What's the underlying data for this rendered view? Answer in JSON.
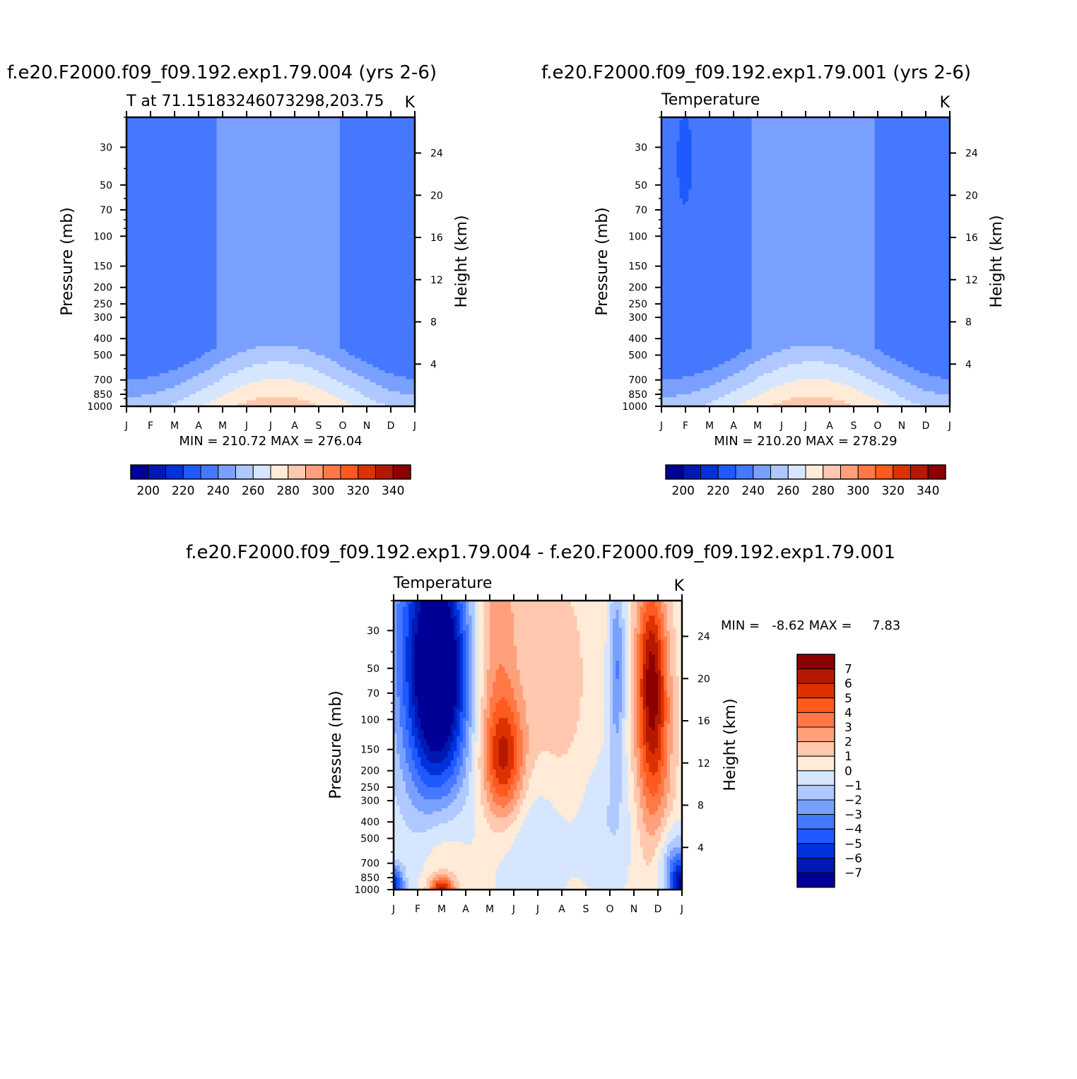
{
  "chart_data": [
    {
      "type": "heatmap",
      "title": "f.e20.F2000.f09_f09.192.exp1.79.004 (yrs 2-6)",
      "subtitle": "T at 71.15183246073298,203.75",
      "units": "K",
      "xlabel": "",
      "ylabel": "Pressure (mb)",
      "y2label": "Height (km)",
      "x_ticks": [
        "J",
        "F",
        "M",
        "A",
        "M",
        "J",
        "J",
        "A",
        "S",
        "O",
        "N",
        "D",
        "J"
      ],
      "y_ticks": [
        30,
        50,
        70,
        100,
        150,
        200,
        250,
        300,
        400,
        500,
        700,
        850,
        1000
      ],
      "y2_ticks": [
        24,
        20,
        16,
        12,
        8,
        4
      ],
      "ylim": [
        20,
        1000
      ],
      "y_scale": "log",
      "stats": "MIN = 210.72 MAX = 276.04",
      "min": 210.72,
      "max": 276.04,
      "colorbar": {
        "orientation": "horizontal",
        "labels": [
          "200",
          "220",
          "240",
          "260",
          "280",
          "300",
          "320",
          "340"
        ],
        "colors": [
          "#000096",
          "#0019b4",
          "#0032dc",
          "#1e5aff",
          "#4678ff",
          "#7aa0ff",
          "#afc8ff",
          "#d7e6ff",
          "#ffebd7",
          "#ffc8af",
          "#ffa07a",
          "#ff7846",
          "#ff5a1e",
          "#dc3200",
          "#b41900",
          "#8c0000"
        ]
      }
    },
    {
      "type": "heatmap",
      "title": "f.e20.F2000.f09_f09.192.exp1.79.001 (yrs 2-6)",
      "subtitle": "Temperature",
      "units": "K",
      "xlabel": "",
      "ylabel": "Pressure (mb)",
      "y2label": "Height (km)",
      "x_ticks": [
        "J",
        "F",
        "M",
        "A",
        "M",
        "J",
        "J",
        "A",
        "S",
        "O",
        "N",
        "D",
        "J"
      ],
      "y_ticks": [
        30,
        50,
        70,
        100,
        150,
        200,
        250,
        300,
        400,
        500,
        700,
        850,
        1000
      ],
      "y2_ticks": [
        24,
        20,
        16,
        12,
        8,
        4
      ],
      "ylim": [
        20,
        1000
      ],
      "y_scale": "log",
      "stats": "MIN = 210.20 MAX = 278.29",
      "min": 210.2,
      "max": 278.29,
      "colorbar": {
        "orientation": "horizontal",
        "labels": [
          "200",
          "220",
          "240",
          "260",
          "280",
          "300",
          "320",
          "340"
        ],
        "colors": [
          "#000096",
          "#0019b4",
          "#0032dc",
          "#1e5aff",
          "#4678ff",
          "#7aa0ff",
          "#afc8ff",
          "#d7e6ff",
          "#ffebd7",
          "#ffc8af",
          "#ffa07a",
          "#ff7846",
          "#ff5a1e",
          "#dc3200",
          "#b41900",
          "#8c0000"
        ]
      }
    },
    {
      "type": "heatmap",
      "title": "f.e20.F2000.f09_f09.192.exp1.79.004 - f.e20.F2000.f09_f09.192.exp1.79.001",
      "subtitle": "Temperature",
      "units": "K",
      "xlabel": "",
      "ylabel": "Pressure (mb)",
      "y2label": "Height (km)",
      "x_ticks": [
        "J",
        "F",
        "M",
        "A",
        "M",
        "J",
        "J",
        "A",
        "S",
        "O",
        "N",
        "D",
        "J"
      ],
      "y_ticks": [
        30,
        50,
        70,
        100,
        150,
        200,
        250,
        300,
        400,
        500,
        700,
        850,
        1000
      ],
      "y2_ticks": [
        24,
        20,
        16,
        12,
        8,
        4
      ],
      "ylim": [
        20,
        1000
      ],
      "y_scale": "log",
      "stats": "MIN =   -8.62 MAX =     7.83",
      "min": -8.62,
      "max": 7.83,
      "colorbar": {
        "orientation": "vertical",
        "labels": [
          "7",
          "6",
          "5",
          "4",
          "3",
          "2",
          "1",
          "0",
          "-1",
          "-2",
          "-3",
          "-4",
          "-5",
          "-6",
          "-7"
        ],
        "colors": [
          "#8c0000",
          "#b41900",
          "#dc3200",
          "#ff5a1e",
          "#ff7846",
          "#ffa07a",
          "#ffc8af",
          "#ffebd7",
          "#d7e6ff",
          "#afc8ff",
          "#7aa0ff",
          "#4678ff",
          "#1e5aff",
          "#0032dc",
          "#0019b4",
          "#000096"
        ]
      }
    }
  ]
}
